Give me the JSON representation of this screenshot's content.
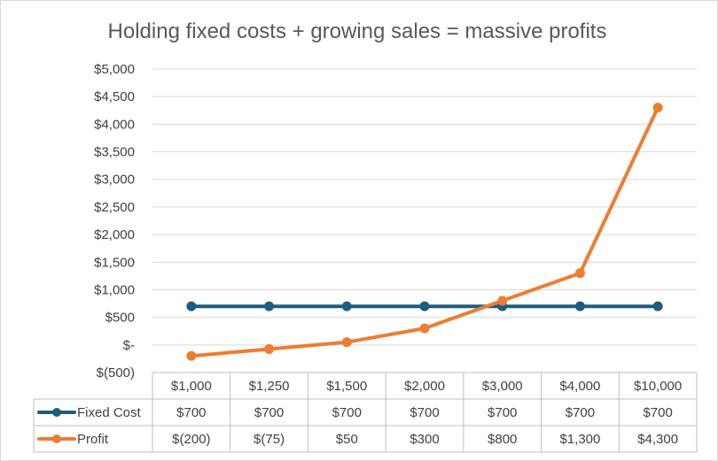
{
  "chart_data": {
    "type": "line",
    "title": "Holding fixed costs + growing sales = massive profits",
    "categories": [
      "$1,000",
      "$1,250",
      "$1,500",
      "$2,000",
      "$3,000",
      "$4,000",
      "$10,000"
    ],
    "ylim": [
      -500,
      5000
    ],
    "ytick_step": 500,
    "ytick_labels": [
      "$(500)",
      "$-",
      "$500",
      "$1,000",
      "$1,500",
      "$2,000",
      "$2,500",
      "$3,000",
      "$3,500",
      "$4,000",
      "$4,500",
      "$5,000"
    ],
    "series": [
      {
        "name": "Fixed Cost",
        "color": "#1f5c7f",
        "values": [
          700,
          700,
          700,
          700,
          700,
          700,
          700
        ],
        "labels": [
          "$700",
          "$700",
          "$700",
          "$700",
          "$700",
          "$700",
          "$700"
        ]
      },
      {
        "name": "Profit",
        "color": "#ed7d31",
        "values": [
          -200,
          -75,
          50,
          300,
          800,
          1300,
          4300
        ],
        "labels": [
          "$(200)",
          "$(75)",
          "$50",
          "$300",
          "$800",
          "$1,300",
          "$4,300"
        ]
      }
    ],
    "grid": true,
    "data_table": true,
    "legend": "in data table"
  }
}
